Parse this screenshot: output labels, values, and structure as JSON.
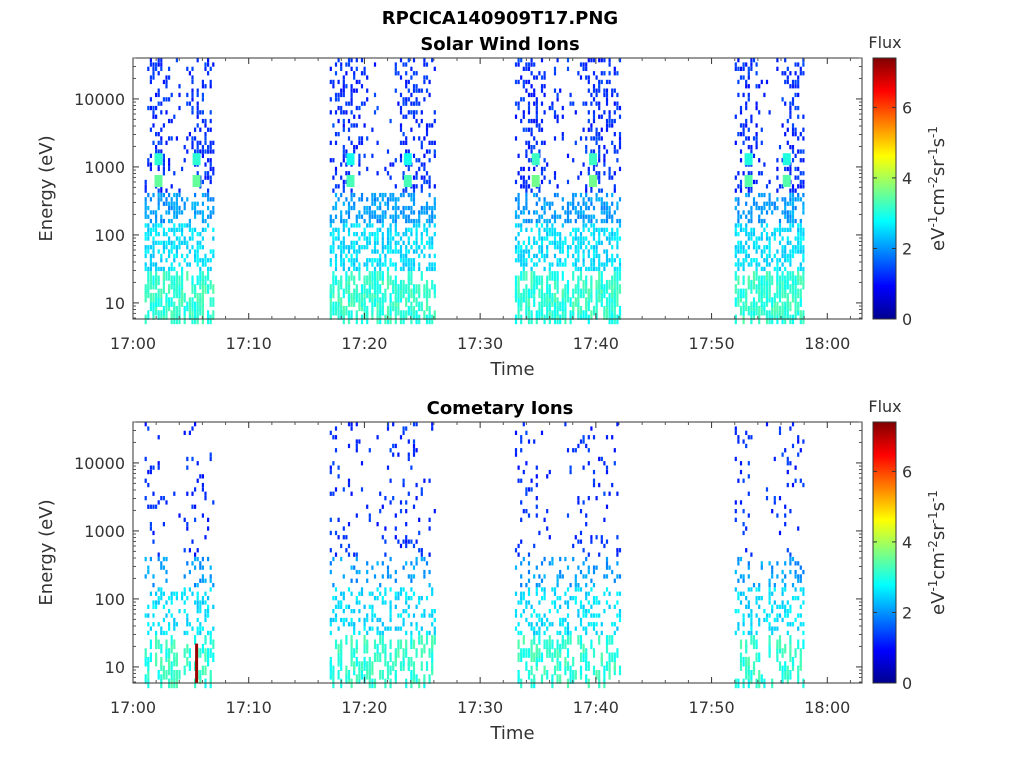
{
  "figure": {
    "title": "RPCICA140909T17.PNG"
  },
  "chart_data": [
    {
      "type": "heatmap",
      "title": "Solar Wind Ions",
      "xlabel": "Time",
      "ylabel": "Energy (eV)",
      "x_ticks": [
        "17:00",
        "17:10",
        "17:20",
        "17:30",
        "17:40",
        "17:50",
        "18:00"
      ],
      "x_range": [
        "17:00",
        "18:03"
      ],
      "y_scale": "log",
      "y_ticks": [
        "10",
        "100",
        "1000",
        "10000"
      ],
      "y_range": [
        5.8,
        40000
      ],
      "colorbar": {
        "title": "Flux",
        "label": "eV-1cm-2sr-1s-1",
        "label_parts": {
          "base": "eV",
          "e1": "-1",
          "u2": "cm",
          "e2": "-2",
          "u3": "sr",
          "e3": "-1",
          "u4": "s",
          "e4": "-1"
        },
        "range": [
          0,
          7.4
        ],
        "ticks": [
          "0",
          "2",
          "4",
          "6"
        ],
        "colormap": "jet"
      },
      "activity_windows": [
        {
          "start": "17:01",
          "end": "17:07",
          "hot_energies_eV": [
            620,
            1300
          ],
          "hot_flux": 3.5
        },
        {
          "start": "17:17",
          "end": "17:26",
          "hot_energies_eV": [
            620,
            1300
          ],
          "hot_flux": 3.3
        },
        {
          "start": "17:33",
          "end": "17:42",
          "hot_energies_eV": [
            620,
            1300
          ],
          "hot_flux": 3.6
        },
        {
          "start": "17:52",
          "end": "17:58",
          "hot_energies_eV": [
            620,
            1300
          ],
          "hot_flux": 3.4
        }
      ],
      "peak_flux": 4.2
    },
    {
      "type": "heatmap",
      "title": "Cometary Ions",
      "xlabel": "Time",
      "ylabel": "Energy (eV)",
      "x_ticks": [
        "17:00",
        "17:10",
        "17:20",
        "17:30",
        "17:40",
        "17:50",
        "18:00"
      ],
      "x_range": [
        "17:00",
        "18:03"
      ],
      "y_scale": "log",
      "y_ticks": [
        "10",
        "100",
        "1000",
        "10000"
      ],
      "y_range": [
        5.8,
        40000
      ],
      "colorbar": {
        "title": "Flux",
        "label": "eV-1cm-2sr-1s-1",
        "label_parts": {
          "base": "eV",
          "e1": "-1",
          "u2": "cm",
          "e2": "-2",
          "u3": "sr",
          "e3": "-1",
          "u4": "s",
          "e4": "-1"
        },
        "range": [
          0,
          7.4
        ],
        "ticks": [
          "0",
          "2",
          "4",
          "6"
        ],
        "colormap": "jet"
      },
      "activity_windows": [
        {
          "start": "17:01",
          "end": "17:07"
        },
        {
          "start": "17:17",
          "end": "17:26"
        },
        {
          "start": "17:33",
          "end": "17:42"
        },
        {
          "start": "17:52",
          "end": "17:58"
        }
      ],
      "peak_flux": 7.2,
      "peak_time": "17:05.5",
      "peak_energy_eV": 12
    }
  ]
}
